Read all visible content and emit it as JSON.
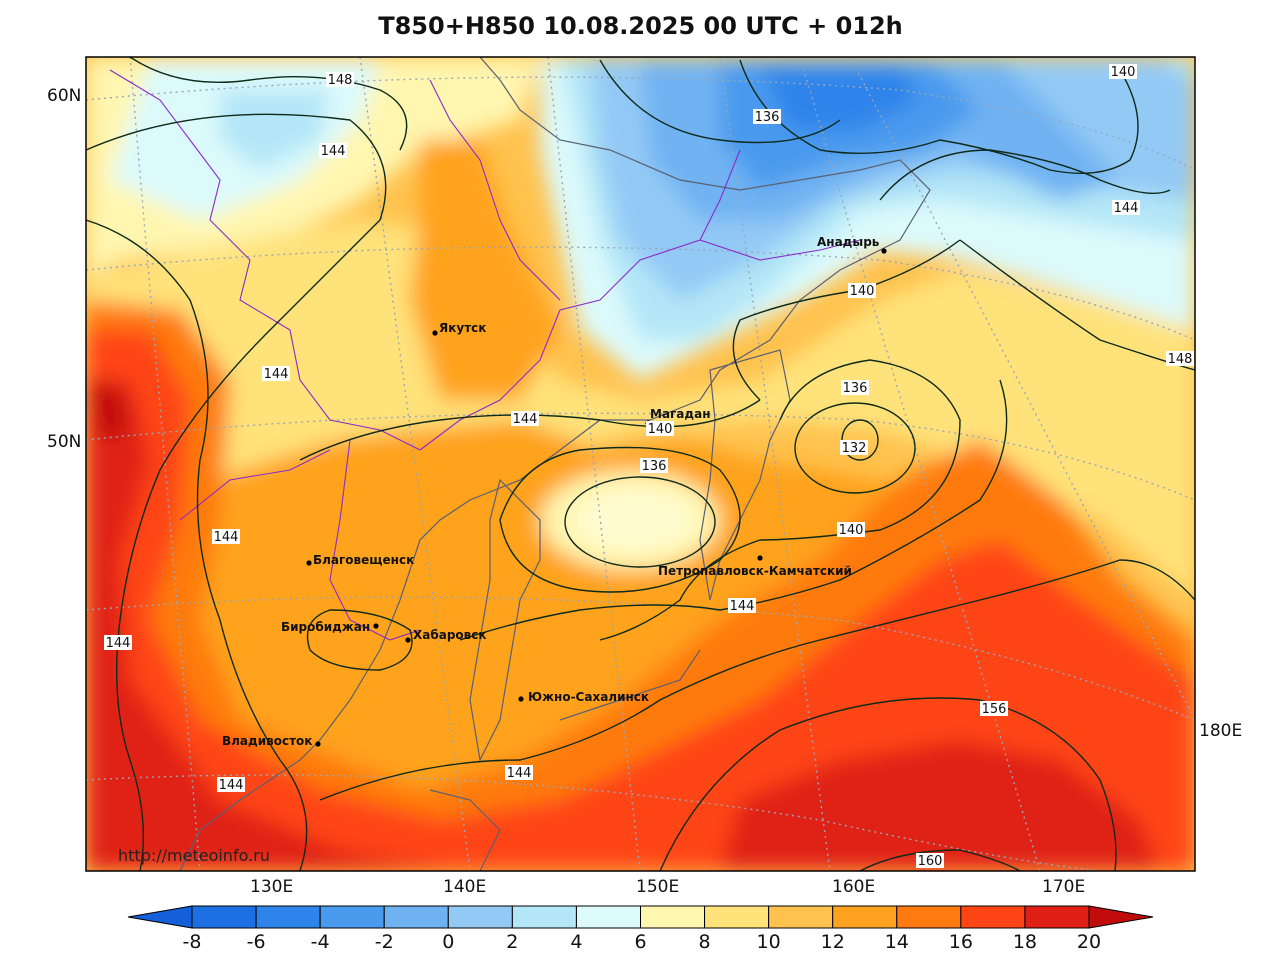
{
  "title": "T850+H850 10.08.2025 00 UTC + 012h",
  "watermark": "http://meteoinfo.ru",
  "lat_labels": [
    "60N",
    "50N"
  ],
  "lon_labels": [
    "130E",
    "140E",
    "150E",
    "160E",
    "170E",
    "180E"
  ],
  "cities": [
    {
      "name": "Якутск"
    },
    {
      "name": "Магадан"
    },
    {
      "name": "Анадырь"
    },
    {
      "name": "Благовещенск"
    },
    {
      "name": "Биробиджан"
    },
    {
      "name": "Хабаровск"
    },
    {
      "name": "Петропавловск-Камчатский"
    },
    {
      "name": "Южно-Сахалинск"
    },
    {
      "name": "Владивосток"
    }
  ],
  "contour_labels": [
    "148",
    "144",
    "136",
    "140",
    "144",
    "140",
    "144",
    "136",
    "132",
    "140",
    "140",
    "136",
    "144",
    "144",
    "144",
    "144",
    "144",
    "144",
    "156",
    "160",
    "148"
  ],
  "legend": {
    "ticks": [
      "-8",
      "-6",
      "-4",
      "-2",
      "0",
      "2",
      "4",
      "6",
      "8",
      "10",
      "12",
      "14",
      "16",
      "18",
      "20"
    ],
    "colors": [
      "#1e6fe3",
      "#2e84ea",
      "#4a9aee",
      "#6fb2f2",
      "#93c9f5",
      "#b3e6f7",
      "#dcfafc",
      "#fff6b0",
      "#ffe27a",
      "#ffc24e",
      "#ffa21f",
      "#ff7a10",
      "#ff4515",
      "#e02016"
    ],
    "under_color": "#1460d8",
    "over_color": "#c00c0c"
  }
}
